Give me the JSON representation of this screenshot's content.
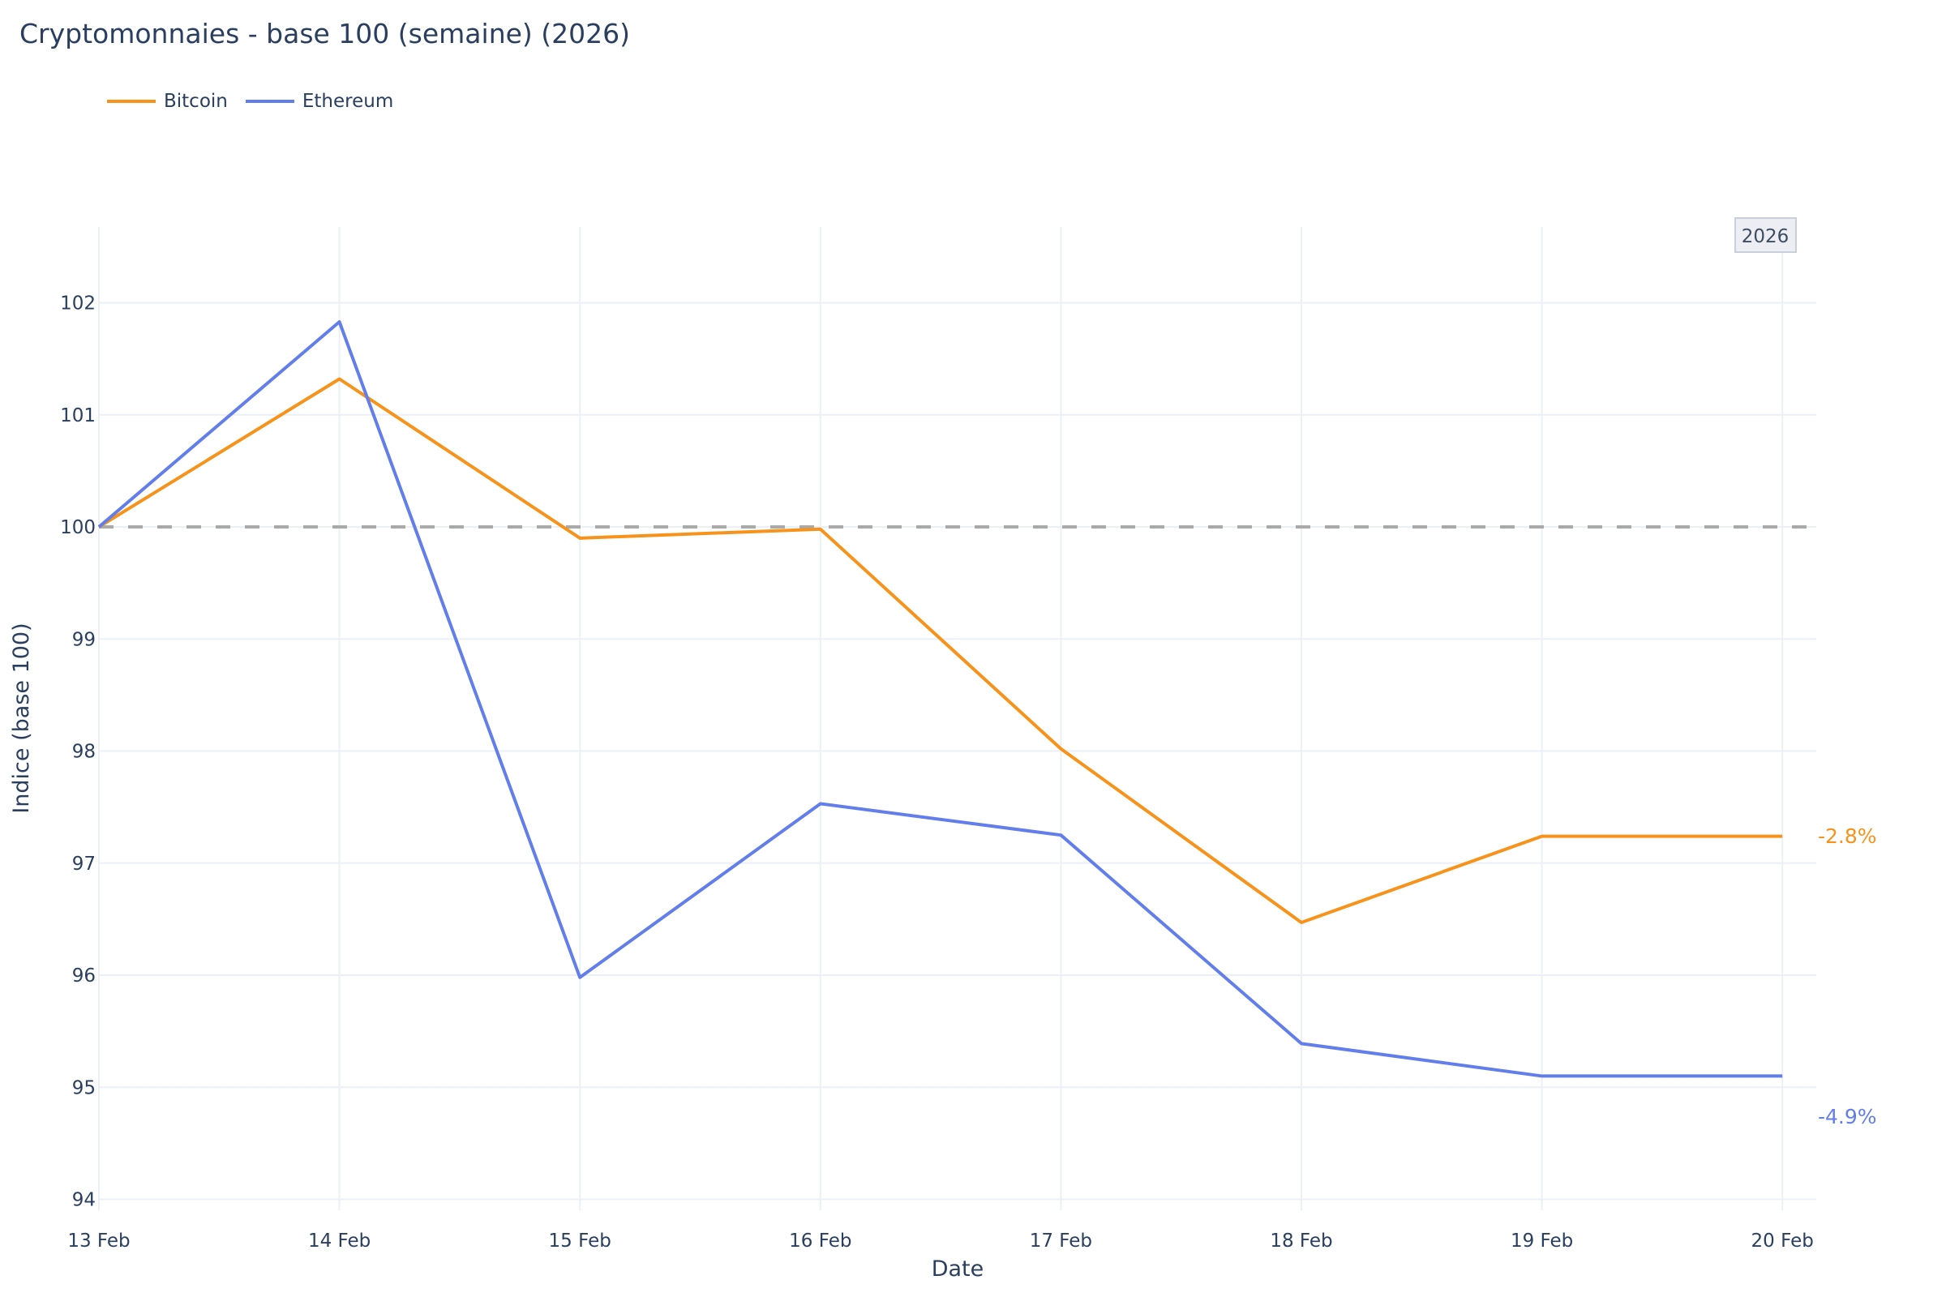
{
  "title": "Cryptomonnaies - base 100 (semaine) (2026)",
  "legend": [
    {
      "name": "Bitcoin",
      "color": "#f7931a"
    },
    {
      "name": "Ethereum",
      "color": "#627eea"
    }
  ],
  "annotation_badge": "2026",
  "end_labels": [
    {
      "series": "Bitcoin",
      "text": "-2.8%",
      "color": "#f7931a"
    },
    {
      "series": "Ethereum",
      "text": "-4.9%",
      "color": "#627eea"
    }
  ],
  "chart_data": {
    "type": "line",
    "title": "Cryptomonnaies - base 100 (semaine) (2026)",
    "xlabel": "Date",
    "ylabel": "Indice (base 100)",
    "categories": [
      "13 Feb",
      "14 Feb",
      "15 Feb",
      "16 Feb",
      "17 Feb",
      "18 Feb",
      "19 Feb",
      "20 Feb"
    ],
    "series": [
      {
        "name": "Bitcoin",
        "color": "#f7931a",
        "values": [
          100,
          101.32,
          99.9,
          99.98,
          98.02,
          96.47,
          97.24,
          97.24
        ],
        "end_label": "-2.8%"
      },
      {
        "name": "Ethereum",
        "color": "#627eea",
        "values": [
          100,
          101.83,
          95.98,
          97.53,
          97.25,
          95.39,
          95.1,
          95.1
        ],
        "end_label": "-4.9%"
      }
    ],
    "reference_line": {
      "y": 100,
      "style": "dashed",
      "color": "#aaaaaa"
    },
    "yticks": [
      94,
      95,
      96,
      97,
      98,
      99,
      100,
      101,
      102
    ],
    "ylim": [
      93.9,
      102.67
    ],
    "grid": true,
    "legend_position": "top-left",
    "annotations": [
      {
        "text": "2026",
        "position": "top-right"
      }
    ]
  }
}
